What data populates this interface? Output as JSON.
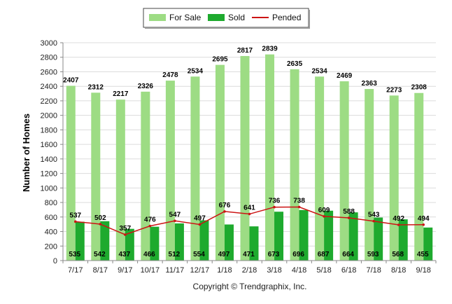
{
  "chart_data": {
    "type": "bar",
    "categories": [
      "7/17",
      "8/17",
      "9/17",
      "10/17",
      "11/17",
      "12/17",
      "1/18",
      "2/18",
      "3/18",
      "4/18",
      "5/18",
      "6/18",
      "7/18",
      "8/18",
      "9/18"
    ],
    "series": [
      {
        "name": "For Sale",
        "type": "bar",
        "color": "#9ddc84",
        "values": [
          2407,
          2312,
          2217,
          2326,
          2478,
          2534,
          2695,
          2817,
          2839,
          2635,
          2534,
          2469,
          2363,
          2273,
          2308
        ]
      },
      {
        "name": "Sold",
        "type": "bar",
        "color": "#1eaa2e",
        "values": [
          535,
          542,
          437,
          466,
          512,
          554,
          497,
          471,
          673,
          696,
          687,
          664,
          593,
          568,
          455
        ]
      },
      {
        "name": "Pended",
        "type": "line",
        "color": "#cc1414",
        "values": [
          537,
          502,
          357,
          476,
          547,
          497,
          676,
          641,
          736,
          738,
          609,
          588,
          543,
          492,
          494
        ]
      }
    ],
    "ylabel": "Number of Homes",
    "xlabel": "",
    "ylim": [
      0,
      3000
    ],
    "yticks": [
      0,
      200,
      400,
      600,
      800,
      1000,
      1200,
      1400,
      1600,
      1800,
      2000,
      2200,
      2400,
      2600,
      2800,
      3000
    ],
    "grid": true,
    "legend_position": "top-center"
  },
  "footer": {
    "copyright": "Copyright © Trendgraphix, Inc."
  }
}
